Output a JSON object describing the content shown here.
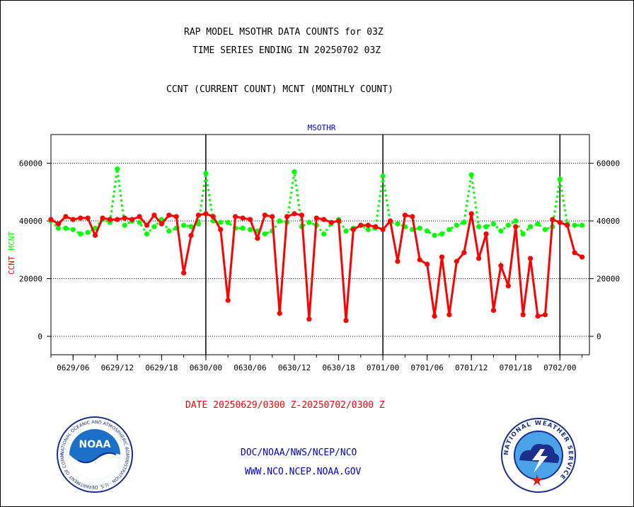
{
  "header": {
    "title_line1": "RAP MODEL MSOTHR DATA COUNTS for 03Z",
    "title_line2": "TIME SERIES ENDING IN 20250702 03Z",
    "subtitle": "CCNT (CURRENT COUNT) MCNT (MONTHLY COUNT)"
  },
  "footer": {
    "date_range": "DATE 20250629/0300 Z-20250702/0300 Z",
    "org": "DOC/NOAA/NWS/NCEP/NCO",
    "url": "WWW.NCO.NCEP.NOAA.GOV"
  },
  "logos": {
    "noaa_text": "NOAA",
    "noaa_ring": "NATIONAL OCEANIC AND ATMOSPHERIC ADMINISTRATION · U.S. DEPARTMENT OF COMMERCE",
    "nws_ring": "NATIONAL WEATHER SERVICE"
  },
  "colors": {
    "ccnt": "#ff0000",
    "mcnt": "#00ff00",
    "label_blue": "#0000cc",
    "date_red": "#ff0000"
  },
  "chart_data": {
    "type": "line",
    "title": "MSOTHR",
    "ylabel_parts": [
      {
        "text": "CCNT",
        "color": "#ff0000"
      },
      {
        "text": "MCNT",
        "color": "#00ff00"
      }
    ],
    "ylim": [
      -6000,
      70000
    ],
    "yticks": [
      0,
      20000,
      40000,
      60000
    ],
    "ytick_labels": [
      "0",
      "20000",
      "40000",
      "60000"
    ],
    "x_range_hours": [
      0,
      73
    ],
    "xtick_labels": [
      {
        "hour": 3,
        "label": "0629/06"
      },
      {
        "hour": 9,
        "label": "0629/12"
      },
      {
        "hour": 15,
        "label": "0629/18"
      },
      {
        "hour": 21,
        "label": "0630/00"
      },
      {
        "hour": 27,
        "label": "0630/06"
      },
      {
        "hour": 33,
        "label": "0630/12"
      },
      {
        "hour": 39,
        "label": "0630/18"
      },
      {
        "hour": 45,
        "label": "0701/00"
      },
      {
        "hour": 51,
        "label": "0701/06"
      },
      {
        "hour": 57,
        "label": "0701/12"
      },
      {
        "hour": 63,
        "label": "0701/18"
      },
      {
        "hour": 69,
        "label": "0702/00"
      }
    ],
    "day_boundaries": [
      21,
      45,
      69
    ],
    "grid": "horizontal dotted",
    "series": [
      {
        "name": "CCNT",
        "color": "#ff0000",
        "values": [
          [
            0,
            40500
          ],
          [
            1,
            39000
          ],
          [
            2,
            41500
          ],
          [
            3,
            40500
          ],
          [
            4,
            41000
          ],
          [
            5,
            41000
          ],
          [
            6,
            35000
          ],
          [
            7,
            41000
          ],
          [
            8,
            40500
          ],
          [
            9,
            40500
          ],
          [
            10,
            41000
          ],
          [
            11,
            40500
          ],
          [
            12,
            41500
          ],
          [
            13,
            38500
          ],
          [
            14,
            42000
          ],
          [
            15,
            39000
          ],
          [
            16,
            42000
          ],
          [
            17,
            41500
          ],
          [
            18,
            22000
          ],
          [
            19,
            35000
          ],
          [
            20,
            42000
          ],
          [
            21,
            42500
          ],
          [
            22,
            41500
          ],
          [
            23,
            37000
          ],
          [
            24,
            12500
          ],
          [
            25,
            41500
          ],
          [
            26,
            41000
          ],
          [
            27,
            40500
          ],
          [
            28,
            34000
          ],
          [
            29,
            42000
          ],
          [
            30,
            41500
          ],
          [
            31,
            8000
          ],
          [
            32,
            41500
          ],
          [
            33,
            42500
          ],
          [
            34,
            42000
          ],
          [
            35,
            6000
          ],
          [
            36,
            41000
          ],
          [
            37,
            40500
          ],
          [
            38,
            39500
          ],
          [
            39,
            40000
          ],
          [
            40,
            5500
          ],
          [
            41,
            37000
          ],
          [
            42,
            38500
          ],
          [
            43,
            38500
          ],
          [
            44,
            38000
          ],
          [
            45,
            37000
          ],
          [
            46,
            40000
          ],
          [
            47,
            26000
          ],
          [
            48,
            42000
          ],
          [
            49,
            41500
          ],
          [
            50,
            26500
          ],
          [
            51,
            25000
          ],
          [
            52,
            7000
          ],
          [
            53,
            27500
          ],
          [
            54,
            7500
          ],
          [
            55,
            26000
          ],
          [
            56,
            29000
          ],
          [
            57,
            42500
          ],
          [
            58,
            27000
          ],
          [
            59,
            35500
          ],
          [
            60,
            9000
          ],
          [
            61,
            24500
          ],
          [
            62,
            17500
          ],
          [
            63,
            38000
          ],
          [
            64,
            7500
          ],
          [
            65,
            27000
          ],
          [
            66,
            7000
          ],
          [
            67,
            7500
          ],
          [
            68,
            40500
          ],
          [
            69,
            39500
          ],
          [
            70,
            38500
          ],
          [
            71,
            29000
          ],
          [
            72,
            27500
          ]
        ]
      },
      {
        "name": "MCNT",
        "color": "#00ff00",
        "values": [
          [
            0,
            40000
          ],
          [
            1,
            37500
          ],
          [
            2,
            37500
          ],
          [
            3,
            37000
          ],
          [
            4,
            35500
          ],
          [
            5,
            36000
          ],
          [
            6,
            37500
          ],
          [
            7,
            40500
          ],
          [
            8,
            39500
          ],
          [
            9,
            58000
          ],
          [
            10,
            38500
          ],
          [
            11,
            40000
          ],
          [
            12,
            39500
          ],
          [
            13,
            35500
          ],
          [
            14,
            38000
          ],
          [
            15,
            40500
          ],
          [
            16,
            36500
          ],
          [
            17,
            37500
          ],
          [
            18,
            38500
          ],
          [
            19,
            38000
          ],
          [
            20,
            39000
          ],
          [
            21,
            56500
          ],
          [
            22,
            40000
          ],
          [
            23,
            39500
          ],
          [
            24,
            39500
          ],
          [
            25,
            37500
          ],
          [
            26,
            37500
          ],
          [
            27,
            37000
          ],
          [
            28,
            36500
          ],
          [
            29,
            35500
          ],
          [
            30,
            36500
          ],
          [
            31,
            40000
          ],
          [
            32,
            39500
          ],
          [
            33,
            57000
          ],
          [
            34,
            38000
          ],
          [
            35,
            39500
          ],
          [
            36,
            38500
          ],
          [
            37,
            35500
          ],
          [
            38,
            39000
          ],
          [
            39,
            40500
          ],
          [
            40,
            36500
          ],
          [
            41,
            37500
          ],
          [
            42,
            38500
          ],
          [
            43,
            37000
          ],
          [
            44,
            37500
          ],
          [
            45,
            55500
          ],
          [
            46,
            39500
          ],
          [
            47,
            39000
          ],
          [
            48,
            38000
          ],
          [
            49,
            37000
          ],
          [
            50,
            37500
          ],
          [
            51,
            36500
          ],
          [
            52,
            35000
          ],
          [
            53,
            35500
          ],
          [
            54,
            37000
          ],
          [
            55,
            38500
          ],
          [
            56,
            39500
          ],
          [
            57,
            56000
          ],
          [
            58,
            38000
          ],
          [
            59,
            38000
          ],
          [
            60,
            39000
          ],
          [
            61,
            36500
          ],
          [
            62,
            38500
          ],
          [
            63,
            40000
          ],
          [
            64,
            35500
          ],
          [
            65,
            38000
          ],
          [
            66,
            39000
          ],
          [
            67,
            37000
          ],
          [
            68,
            38000
          ],
          [
            69,
            54500
          ],
          [
            70,
            39000
          ],
          [
            71,
            38500
          ],
          [
            72,
            38500
          ]
        ]
      }
    ]
  }
}
